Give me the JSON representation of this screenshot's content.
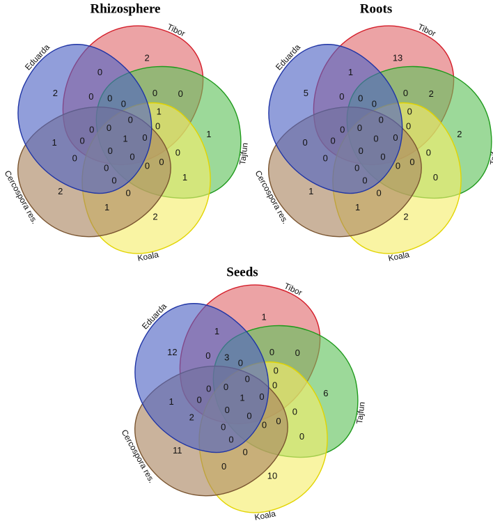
{
  "sets": [
    {
      "name": "Tibor",
      "fill": "#e06a6e",
      "stroke": "#d41e2a"
    },
    {
      "name": "Tajfun",
      "fill": "#5fc15a",
      "stroke": "#1f9a1c"
    },
    {
      "name": "Koala",
      "fill": "#f5ee6a",
      "stroke": "#e2d400"
    },
    {
      "name": "Cercospora res.",
      "fill": "#a98560",
      "stroke": "#7a5530"
    },
    {
      "name": "Eduarda",
      "fill": "#4d62c4",
      "stroke": "#2035a5"
    }
  ],
  "diagrams": [
    {
      "title": "Rhizosphere",
      "exclusive": [
        "2",
        "1",
        "2",
        "2",
        "2"
      ],
      "pair_outer": [
        "0",
        "1",
        "1",
        "1",
        "0"
      ],
      "pair_inner": [
        "1",
        "0",
        "0",
        "0",
        "0"
      ],
      "triple_outer": [
        "0",
        "0",
        "0",
        "0",
        "0"
      ],
      "triple_inner": [
        "0",
        "0",
        "0",
        "0",
        "0"
      ],
      "quad": [
        "0",
        "0",
        "0",
        "0",
        "0"
      ],
      "all": "1"
    },
    {
      "title": "Roots",
      "exclusive": [
        "13",
        "2",
        "2",
        "1",
        "5"
      ],
      "pair_outer": [
        "2",
        "0",
        "1",
        "0",
        "1"
      ],
      "pair_inner": [
        "0",
        "0",
        "0",
        "0",
        "0"
      ],
      "triple_outer": [
        "0",
        "0",
        "0",
        "0",
        "0"
      ],
      "triple_inner": [
        "0",
        "0",
        "0",
        "0",
        "0"
      ],
      "quad": [
        "0",
        "0",
        "0",
        "0",
        "0"
      ],
      "all": "0"
    },
    {
      "title": "Seeds",
      "exclusive": [
        "1",
        "6",
        "10",
        "11",
        "12"
      ],
      "pair_outer": [
        "0",
        "0",
        "0",
        "1",
        "1"
      ],
      "pair_inner": [
        "0",
        "0",
        "0",
        "0",
        "3"
      ],
      "triple_outer": [
        "0",
        "0",
        "0",
        "2",
        "0"
      ],
      "triple_inner": [
        "0",
        "0",
        "0",
        "0",
        "0"
      ],
      "quad": [
        "0",
        "0",
        "0",
        "0",
        "0"
      ],
      "all": "1"
    }
  ]
}
